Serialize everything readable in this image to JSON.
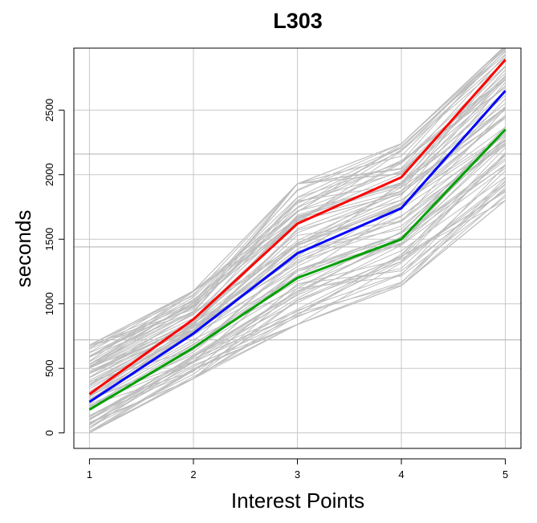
{
  "chart_data": {
    "type": "line",
    "title": "L303",
    "xlabel": "Interest Points",
    "ylabel": "seconds",
    "x": [
      1,
      2,
      3,
      4,
      5
    ],
    "x_tick_labels": [
      "1",
      "2",
      "3",
      "4",
      "5"
    ],
    "y_ticks": [
      0,
      500,
      1000,
      1500,
      2000,
      2500
    ],
    "y_tick_labels": [
      "0",
      "500",
      "1000",
      "1500",
      "2000",
      "2500"
    ],
    "xlim": [
      0.85,
      5.15
    ],
    "ylim": [
      -120,
      2980
    ],
    "grid": true,
    "extra_hlines": [
      720,
      1440,
      2160
    ],
    "legend": "none",
    "series": [
      {
        "color": "#ff0000",
        "values": [
          300,
          880,
          1620,
          1980,
          2890
        ]
      },
      {
        "color": "#0000ff",
        "values": [
          240,
          770,
          1390,
          1740,
          2650
        ]
      },
      {
        "color": "#00a000",
        "values": [
          180,
          660,
          1200,
          1500,
          2350
        ]
      }
    ],
    "background_band": {
      "color": "#bdbdbd",
      "lower": [
        0,
        420,
        840,
        1140,
        1800
      ],
      "upper": [
        680,
        1100,
        1930,
        2240,
        3000
      ],
      "count": 90
    }
  }
}
